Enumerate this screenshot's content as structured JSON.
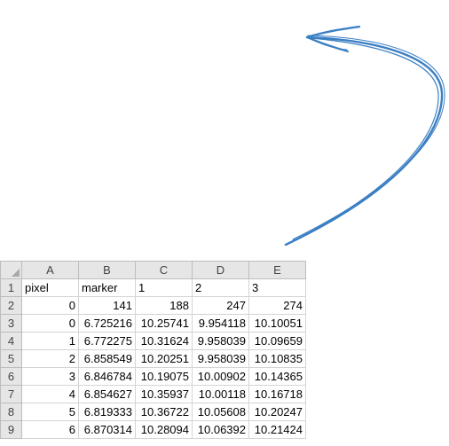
{
  "colors": {
    "arrow": "#3b7fc4",
    "header_bg": "#e6e6e6",
    "grid": "#d4d4d4"
  },
  "spreadsheet": {
    "corner_icon": "select-all-triangle-icon",
    "column_headers": [
      "A",
      "B",
      "C",
      "D",
      "E"
    ],
    "rows": [
      {
        "row": "1",
        "cells": [
          "pixel",
          "marker",
          "1",
          "2",
          "3"
        ]
      },
      {
        "row": "2",
        "cells": [
          "0",
          "141",
          "188",
          "247",
          "274"
        ]
      },
      {
        "row": "3",
        "cells": [
          "0",
          "6.725216",
          "10.25741",
          "9.954118",
          "10.10051"
        ]
      },
      {
        "row": "4",
        "cells": [
          "1",
          "6.772275",
          "10.31624",
          "9.958039",
          "10.09659"
        ]
      },
      {
        "row": "5",
        "cells": [
          "2",
          "6.858549",
          "10.20251",
          "9.958039",
          "10.10835"
        ]
      },
      {
        "row": "6",
        "cells": [
          "3",
          "6.846784",
          "10.19075",
          "10.00902",
          "10.14365"
        ]
      },
      {
        "row": "7",
        "cells": [
          "4",
          "6.854627",
          "10.35937",
          "10.00118",
          "10.16718"
        ]
      },
      {
        "row": "8",
        "cells": [
          "5",
          "6.819333",
          "10.36722",
          "10.05608",
          "10.20247"
        ]
      },
      {
        "row": "9",
        "cells": [
          "6",
          "6.870314",
          "10.28094",
          "10.06392",
          "10.21424"
        ]
      }
    ]
  }
}
